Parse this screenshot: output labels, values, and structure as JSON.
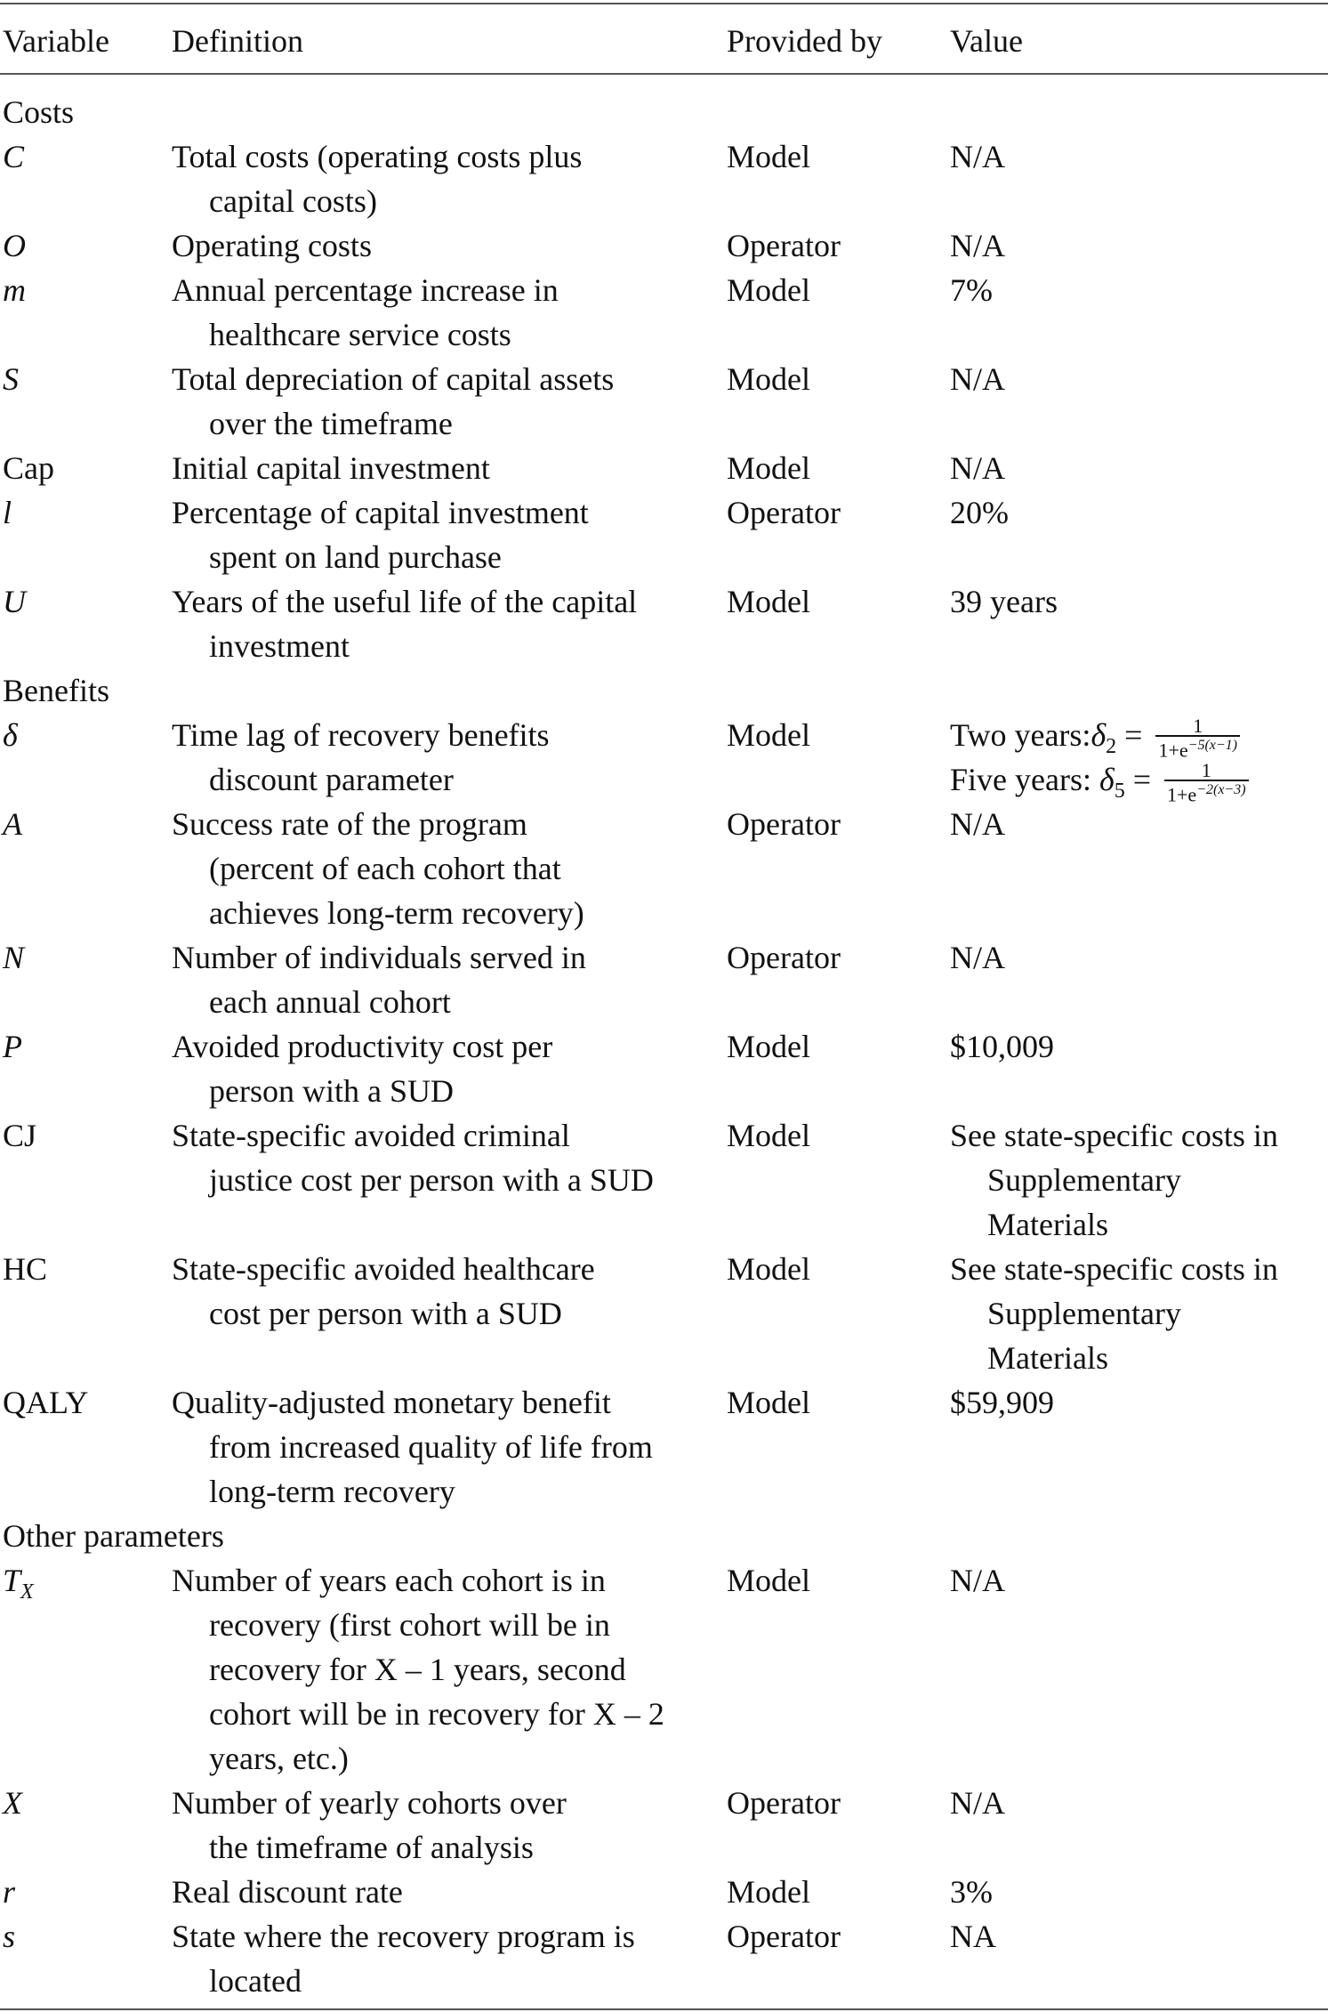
{
  "header": {
    "variable": "Variable",
    "definition": "Definition",
    "provided_by": "Provided by",
    "value": "Value"
  },
  "sections": [
    {
      "title": "Costs",
      "rows": [
        {
          "var": "C",
          "italic": true,
          "def": [
            "Total costs (operating costs plus",
            "capital costs)"
          ],
          "by": "Model",
          "value": [
            "N/A"
          ]
        },
        {
          "var": "O",
          "italic": true,
          "def": [
            "Operating costs"
          ],
          "by": "Operator",
          "value": [
            "N/A"
          ]
        },
        {
          "var": "m",
          "italic": true,
          "def": [
            "Annual percentage increase in",
            "healthcare service costs"
          ],
          "by": "Model",
          "value": [
            "7%"
          ]
        },
        {
          "var": "S",
          "italic": true,
          "def": [
            "Total depreciation of capital assets",
            "over the timeframe"
          ],
          "by": "Model",
          "value": [
            "N/A"
          ]
        },
        {
          "var": "Cap",
          "italic": false,
          "def": [
            "Initial capital investment"
          ],
          "by": "Model",
          "value": [
            "N/A"
          ]
        },
        {
          "var": "l",
          "italic": true,
          "def": [
            "Percentage of capital investment",
            "spent on land purchase"
          ],
          "by": "Operator",
          "value": [
            "20%"
          ]
        },
        {
          "var": "U",
          "italic": true,
          "def": [
            "Years of the useful life of the capital",
            "investment"
          ],
          "by": "Model",
          "value": [
            "39 years"
          ]
        }
      ]
    },
    {
      "title": "Benefits",
      "rows": [
        {
          "var": "δ",
          "italic": true,
          "def": [
            "Time lag of recovery benefits",
            "discount parameter"
          ],
          "by": "Model",
          "formulas": [
            {
              "label": "Two years:",
              "symbol": "δ",
              "sub": "2",
              "eq": " = ",
              "num": "1",
              "den_base": "1+e",
              "den_exp": "−5(x−1)"
            },
            {
              "label": "Five years: ",
              "symbol": "δ",
              "sub": "5",
              "eq": " = ",
              "num": "1",
              "den_base": "1+e",
              "den_exp": "−2(x−3)"
            }
          ]
        },
        {
          "var": "A",
          "italic": true,
          "def": [
            "Success rate of the program",
            "(percent of each cohort that",
            "achieves long-term recovery)"
          ],
          "by": "Operator",
          "value": [
            "N/A"
          ]
        },
        {
          "var": "N",
          "italic": true,
          "def": [
            "Number of individuals served in",
            "each annual cohort"
          ],
          "by": "Operator",
          "value": [
            "N/A"
          ]
        },
        {
          "var": "P",
          "italic": true,
          "def": [
            "Avoided productivity cost per",
            "person with a SUD"
          ],
          "by": "Model",
          "value": [
            "$10,009"
          ]
        },
        {
          "var": "CJ",
          "italic": false,
          "def": [
            "State-specific avoided criminal",
            "justice cost per person with a SUD"
          ],
          "by": "Model",
          "value": [
            "See state-specific costs in",
            "Supplementary",
            "Materials"
          ]
        },
        {
          "var": "HC",
          "italic": false,
          "def": [
            "State-specific avoided healthcare",
            "cost per person with a SUD"
          ],
          "by": "Model",
          "value": [
            "See state-specific costs in",
            "Supplementary",
            "Materials"
          ]
        },
        {
          "var": "QALY",
          "italic": false,
          "def": [
            "Quality-adjusted monetary benefit",
            "from increased quality of life from",
            "long-term recovery"
          ],
          "by": "Model",
          "value": [
            "$59,909"
          ]
        }
      ]
    },
    {
      "title": "Other parameters",
      "rows": [
        {
          "var": "T",
          "var_sub": "X",
          "italic": true,
          "def": [
            "Number of years each cohort is in",
            "recovery (first cohort will be in",
            "recovery for X – 1 years, second",
            "cohort will be in recovery for X – 2",
            "years, etc.)"
          ],
          "by": "Model",
          "value": [
            "N/A"
          ]
        },
        {
          "var": "X",
          "italic": true,
          "def": [
            "Number of yearly cohorts over",
            "the timeframe of analysis"
          ],
          "by": "Operator",
          "value": [
            "N/A"
          ]
        },
        {
          "var": "r",
          "italic": true,
          "def": [
            "Real discount rate"
          ],
          "by": "Model",
          "value": [
            "3%"
          ]
        },
        {
          "var": "s",
          "italic": true,
          "def": [
            "State where the recovery program is",
            "located"
          ],
          "by": "Operator",
          "value": [
            "NA"
          ]
        }
      ]
    }
  ]
}
